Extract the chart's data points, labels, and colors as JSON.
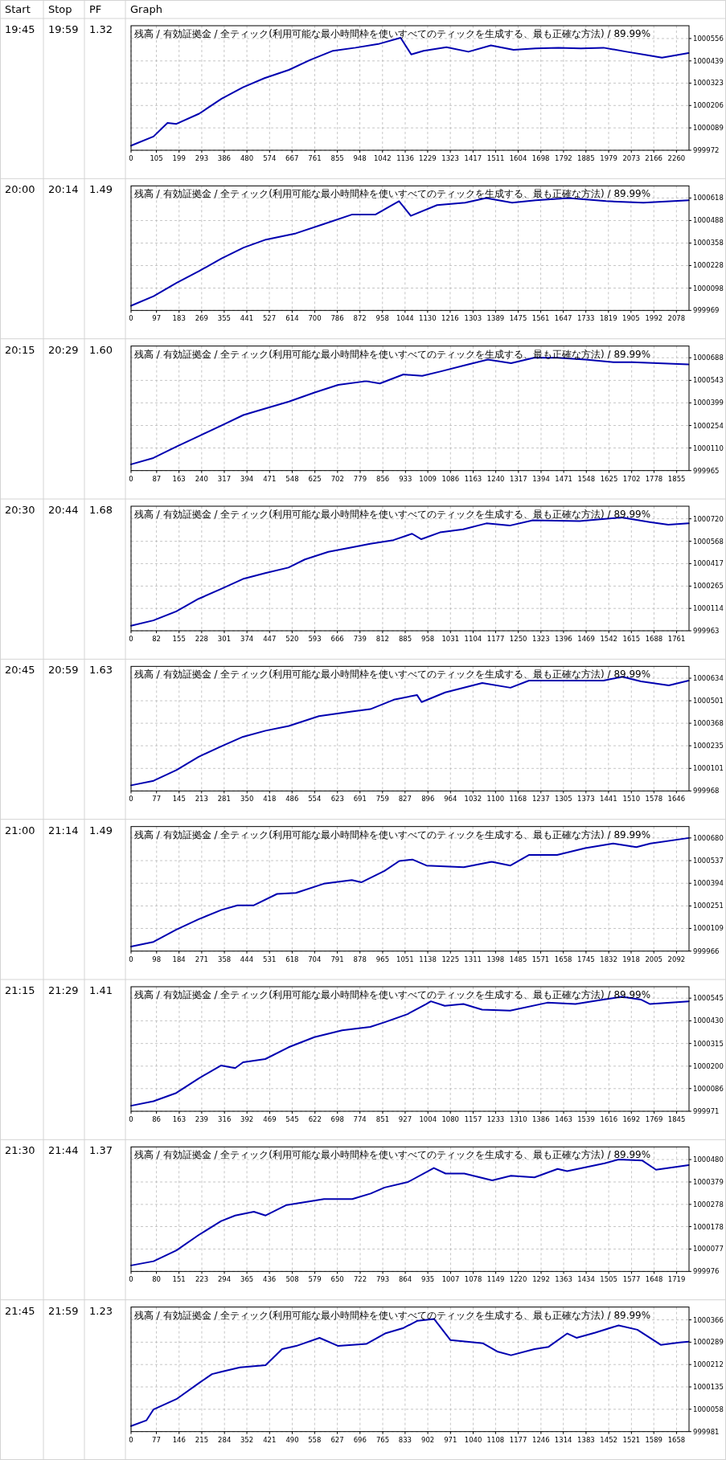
{
  "chart_data": [
    {
      "type": "line",
      "title": "残高 / 有効証拠金 / 全ティック(利用可能な最小時間枠を使いすべてのティックを生成する、最も正確な方法) / 89.99%",
      "annotations": [
        "Start",
        "Stop",
        "PF",
        "Graph",
        "19:45",
        "19:59",
        "1.32"
      ],
      "grid": true,
      "xlim": [
        0,
        2312
      ],
      "xticks": [
        0,
        105,
        199,
        293,
        386,
        480,
        574,
        667,
        761,
        855,
        948,
        1042,
        1136,
        1229,
        1323,
        1417,
        1511,
        1604,
        1698,
        1792,
        1885,
        1979,
        2073,
        2166,
        2260
      ],
      "ylim": [
        999972,
        1000623
      ],
      "yticks": [
        999972,
        1000089,
        1000206,
        1000323,
        1000439,
        1000556
      ],
      "series": [
        {
          "color": "#0000b0",
          "x": [
            0,
            93,
            151,
            188,
            282,
            375,
            464,
            553,
            654,
            742,
            837,
            930,
            1024,
            1117,
            1161,
            1212,
            1307,
            1398,
            1491,
            1585,
            1676,
            1771,
            1864,
            1958,
            2053,
            2146,
            2200,
            2310
          ],
          "values": [
            999996,
            1000044,
            1000115,
            1000110,
            1000163,
            1000241,
            1000301,
            1000349,
            1000392,
            1000444,
            1000492,
            1000508,
            1000527,
            1000560,
            1000473,
            1000492,
            1000511,
            1000487,
            1000520,
            1000497,
            1000504,
            1000508,
            1000504,
            1000508,
            1000487,
            1000468,
            1000456,
            1000480
          ]
        }
      ]
    },
    {
      "type": "line",
      "title": "残高 / 有効証拠金 / 全ティック(利用可能な最小時間枠を使いすべてのティックを生成する、最も正確な方法) / 89.99%",
      "annotations": [
        "20:00",
        "20:14",
        "1.49"
      ],
      "grid": true,
      "xlim": [
        0,
        2126
      ],
      "xticks": [
        0,
        97,
        183,
        269,
        355,
        441,
        527,
        614,
        700,
        786,
        872,
        958,
        1044,
        1130,
        1216,
        1303,
        1389,
        1475,
        1561,
        1647,
        1733,
        1819,
        1905,
        1992,
        2078
      ],
      "ylim": [
        999969,
        1000688
      ],
      "yticks": [
        999969,
        1000098,
        1000228,
        1000358,
        1000488,
        1000618
      ],
      "series": [
        {
          "color": "#0000b0",
          "x": [
            0,
            86,
            173,
            259,
            345,
            429,
            514,
            628,
            735,
            843,
            932,
            1021,
            1066,
            1166,
            1273,
            1353,
            1452,
            1542,
            1667,
            1810,
            1952,
            2125
          ],
          "values": [
            999996,
            1000051,
            1000128,
            1000196,
            1000269,
            1000332,
            1000378,
            1000414,
            1000468,
            1000523,
            1000523,
            1000600,
            1000515,
            1000577,
            1000591,
            1000618,
            1000591,
            1000605,
            1000618,
            1000600,
            1000591,
            1000605
          ]
        }
      ]
    },
    {
      "type": "line",
      "title": "残高 / 有効証拠金 / 全ティック(利用可能な最小時間枠を使いすべてのティックを生成する、最も正確な方法) / 89.99%",
      "annotations": [
        "20:15",
        "20:29",
        "1.60"
      ],
      "grid": true,
      "xlim": [
        0,
        1897
      ],
      "xticks": [
        0,
        87,
        163,
        240,
        317,
        394,
        471,
        548,
        625,
        702,
        779,
        856,
        933,
        1009,
        1086,
        1163,
        1240,
        1317,
        1394,
        1471,
        1548,
        1625,
        1702,
        1778,
        1855
      ],
      "ylim": [
        999965,
        1000763
      ],
      "yticks": [
        999965,
        1000110,
        1000254,
        1000399,
        1000543,
        1000688
      ],
      "series": [
        {
          "color": "#0000b0",
          "x": [
            0,
            76,
            154,
            230,
            307,
            382,
            458,
            537,
            624,
            704,
            799,
            846,
            926,
            990,
            1054,
            1133,
            1213,
            1292,
            1370,
            1449,
            1545,
            1640,
            1704,
            1895
          ],
          "values": [
            1000005,
            1000046,
            1000118,
            1000185,
            1000254,
            1000321,
            1000364,
            1000407,
            1000465,
            1000514,
            1000538,
            1000523,
            1000581,
            1000572,
            1000601,
            1000639,
            1000676,
            1000653,
            1000688,
            1000688,
            1000676,
            1000659,
            1000659,
            1000645
          ]
        }
      ]
    },
    {
      "type": "line",
      "title": "残高 / 有効証拠金 / 全ティック(利用可能な最小時間枠を使いすべてのティックを生成する、最も正確な方法) / 89.99%",
      "annotations": [
        "20:30",
        "20:44",
        "1.68"
      ],
      "grid": true,
      "xlim": [
        0,
        1801
      ],
      "xticks": [
        0,
        82,
        155,
        228,
        301,
        374,
        447,
        520,
        593,
        666,
        739,
        812,
        885,
        958,
        1031,
        1104,
        1177,
        1250,
        1323,
        1396,
        1469,
        1542,
        1615,
        1688,
        1761
      ],
      "ylim": [
        999963,
        1000805
      ],
      "yticks": [
        999963,
        1000114,
        1000265,
        1000417,
        1000568,
        1000720
      ],
      "series": [
        {
          "color": "#0000b0",
          "x": [
            0,
            72,
            146,
            218,
            291,
            361,
            433,
            508,
            561,
            637,
            712,
            772,
            847,
            907,
            937,
            997,
            1072,
            1147,
            1222,
            1297,
            1448,
            1584,
            1674,
            1734,
            1800
          ],
          "values": [
            999997,
            1000033,
            1000094,
            1000179,
            1000246,
            1000313,
            1000353,
            1000390,
            1000445,
            1000497,
            1000527,
            1000551,
            1000576,
            1000619,
            1000582,
            1000628,
            1000649,
            1000689,
            1000674,
            1000710,
            1000704,
            1000729,
            1000698,
            1000680,
            1000689
          ]
        }
      ]
    },
    {
      "type": "line",
      "title": "残高 / 有効証拠金 / 全ティック(利用可能な最小時間枠を使いすべてのティックを生成する、最も正確な方法) / 89.99%",
      "annotations": [
        "20:45",
        "20:59",
        "1.63"
      ],
      "grid": true,
      "xlim": [
        0,
        1684
      ],
      "xticks": [
        0,
        77,
        145,
        213,
        281,
        350,
        418,
        486,
        554,
        623,
        691,
        759,
        827,
        896,
        964,
        1032,
        1100,
        1168,
        1237,
        1305,
        1373,
        1441,
        1510,
        1578,
        1646
      ],
      "ylim": [
        999968,
        1000704
      ],
      "yticks": [
        999968,
        1000101,
        1000235,
        1000368,
        1000501,
        1000634
      ],
      "series": [
        {
          "color": "#0000b0",
          "x": [
            0,
            68,
            137,
            204,
            272,
            338,
            406,
            476,
            567,
            666,
            722,
            793,
            863,
            877,
            948,
            1060,
            1145,
            1201,
            1286,
            1426,
            1483,
            1539,
            1623,
            1683
          ],
          "values": [
            1000001,
            1000028,
            1000091,
            1000170,
            1000231,
            1000288,
            1000324,
            1000352,
            1000410,
            1000437,
            1000451,
            1000507,
            1000535,
            1000493,
            1000550,
            1000606,
            1000578,
            1000620,
            1000620,
            1000620,
            1000643,
            1000615,
            1000592,
            1000620
          ]
        }
      ]
    },
    {
      "type": "line",
      "title": "残高 / 有効証拠金 / 全ティック(利用可能な最小時間枠を使いすべてのティックを生成する、最も正確な方法) / 89.99%",
      "annotations": [
        "21:00",
        "21:14",
        "1.49"
      ],
      "grid": true,
      "xlim": [
        0,
        2140
      ],
      "xticks": [
        0,
        98,
        184,
        271,
        358,
        444,
        531,
        618,
        704,
        791,
        878,
        965,
        1051,
        1138,
        1225,
        1311,
        1398,
        1485,
        1571,
        1658,
        1745,
        1832,
        1918,
        2005,
        2092
      ],
      "ylim": [
        999966,
        1000752
      ],
      "yticks": [
        999966,
        1000109,
        1000251,
        1000394,
        1000537,
        1000680
      ],
      "series": [
        {
          "color": "#0000b0",
          "x": [
            0,
            86,
            174,
            260,
            347,
            408,
            471,
            560,
            632,
            739,
            847,
            883,
            972,
            1029,
            1079,
            1133,
            1276,
            1383,
            1455,
            1527,
            1634,
            1742,
            1849,
            1938,
            1992,
            2139
          ],
          "values": [
            999995,
            1000024,
            1000102,
            1000168,
            1000226,
            1000255,
            1000255,
            1000327,
            1000333,
            1000391,
            1000414,
            1000400,
            1000472,
            1000535,
            1000544,
            1000506,
            1000495,
            1000530,
            1000506,
            1000573,
            1000573,
            1000616,
            1000645,
            1000622,
            1000645,
            1000680
          ]
        }
      ]
    },
    {
      "type": "line",
      "title": "残高 / 有効証拠金 / 全ティック(利用可能な最小時間枠を使いすべてのティックを生成する、最も正確な方法) / 89.99%",
      "annotations": [
        "21:15",
        "21:29",
        "1.41"
      ],
      "grid": true,
      "xlim": [
        0,
        1887
      ],
      "xticks": [
        0,
        86,
        163,
        239,
        316,
        392,
        469,
        545,
        622,
        698,
        774,
        851,
        927,
        1004,
        1080,
        1157,
        1233,
        1310,
        1386,
        1463,
        1539,
        1616,
        1692,
        1769,
        1845
      ],
      "ylim": [
        999971,
        1000603
      ],
      "yticks": [
        999971,
        1000086,
        1000200,
        1000315,
        1000430,
        1000545
      ],
      "series": [
        {
          "color": "#0000b0",
          "x": [
            0,
            76,
            153,
            229,
            304,
            352,
            379,
            454,
            533,
            620,
            714,
            809,
            856,
            935,
            998,
            1014,
            1061,
            1124,
            1187,
            1282,
            1408,
            1503,
            1597,
            1660,
            1724,
            1755,
            1886
          ],
          "values": [
            999999,
            1000022,
            1000064,
            1000138,
            1000203,
            1000190,
            1000220,
            1000236,
            1000296,
            1000347,
            1000382,
            1000399,
            1000422,
            1000464,
            1000515,
            1000529,
            1000506,
            1000515,
            1000487,
            1000482,
            1000522,
            1000515,
            1000538,
            1000552,
            1000538,
            1000515,
            1000529
          ]
        }
      ]
    },
    {
      "type": "line",
      "title": "残高 / 有効証拠金 / 全ティック(利用可能な最小時間枠を使いすべてのティックを生成する、最も正確な方法) / 89.99%",
      "annotations": [
        "21:30",
        "21:44",
        "1.37"
      ],
      "grid": true,
      "xlim": [
        0,
        1758
      ],
      "xticks": [
        0,
        80,
        151,
        223,
        294,
        365,
        436,
        508,
        579,
        650,
        722,
        793,
        864,
        935,
        1007,
        1078,
        1149,
        1220,
        1292,
        1363,
        1434,
        1505,
        1577,
        1648,
        1719
      ],
      "ylim": [
        999976,
        1000537
      ],
      "yticks": [
        999976,
        1000077,
        1000178,
        1000278,
        1000379,
        1000480
      ],
      "series": [
        {
          "color": "#0000b0",
          "x": [
            0,
            71,
            143,
            213,
            284,
            328,
            387,
            424,
            490,
            608,
            697,
            755,
            799,
            873,
            954,
            991,
            1050,
            1138,
            1197,
            1271,
            1344,
            1374,
            1492,
            1536,
            1610,
            1654,
            1757
          ],
          "values": [
            1000003,
            1000022,
            1000071,
            1000140,
            1000203,
            1000228,
            1000245,
            1000228,
            1000275,
            1000302,
            1000302,
            1000327,
            1000354,
            1000379,
            1000442,
            1000417,
            1000417,
            1000386,
            1000407,
            1000400,
            1000438,
            1000428,
            1000463,
            1000480,
            1000476,
            1000434,
            1000455
          ]
        }
      ]
    },
    {
      "type": "line",
      "title": "残高 / 有効証拠金 / 全ティック(利用可能な最小時間枠を使いすべてのティックを生成する、最も正確な方法) / 89.99%",
      "annotations": [
        "21:45",
        "21:59",
        "1.23"
      ],
      "grid": true,
      "xlim": [
        0,
        1696
      ],
      "xticks": [
        0,
        77,
        146,
        215,
        284,
        352,
        421,
        490,
        558,
        627,
        696,
        765,
        833,
        902,
        971,
        1040,
        1108,
        1177,
        1246,
        1314,
        1383,
        1452,
        1521,
        1589,
        1658
      ],
      "ylim": [
        999981,
        1000410
      ],
      "yticks": [
        999981,
        1000058,
        1000135,
        1000212,
        1000289,
        1000366
      ],
      "series": [
        {
          "color": "#0000b0",
          "x": [
            0,
            47,
            68,
            138,
            206,
            246,
            274,
            331,
            409,
            459,
            502,
            573,
            630,
            715,
            772,
            828,
            871,
            921,
            971,
            1070,
            1113,
            1155,
            1226,
            1269,
            1326,
            1354,
            1411,
            1482,
            1539,
            1610,
            1667,
            1695
          ],
          "values": [
            1000000,
            1000020,
            1000057,
            1000093,
            1000148,
            1000179,
            1000187,
            1000202,
            1000210,
            1000265,
            1000276,
            1000304,
            1000276,
            1000283,
            1000319,
            1000338,
            1000363,
            1000369,
            1000296,
            1000285,
            1000257,
            1000244,
            1000265,
            1000273,
            1000319,
            1000304,
            1000322,
            1000347,
            1000332,
            1000280,
            1000288,
            1000291
          ]
        }
      ]
    }
  ]
}
